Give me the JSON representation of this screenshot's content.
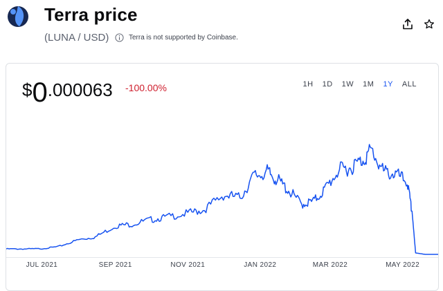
{
  "header": {
    "title": "Terra price",
    "pair": "(LUNA / USD)",
    "notice": "Terra is not supported by Coinbase."
  },
  "icons": {
    "logo": "terra-logo-icon",
    "info": "info-icon",
    "share": "share-icon",
    "star": "star-icon"
  },
  "colors": {
    "accent": "#1652f0",
    "negative": "#cf202f",
    "line": "#1652f0",
    "logo_dark": "#172852",
    "logo_light": "#5493f7"
  },
  "price": {
    "currency": "$",
    "integer": "0",
    "decimals": ".000063",
    "change": "-100.00%"
  },
  "ranges": [
    {
      "label": "1H",
      "active": false
    },
    {
      "label": "1D",
      "active": false
    },
    {
      "label": "1W",
      "active": false
    },
    {
      "label": "1M",
      "active": false
    },
    {
      "label": "1Y",
      "active": true
    },
    {
      "label": "ALL",
      "active": false
    }
  ],
  "chart_data": {
    "type": "line",
    "x_tick_labels": [
      "JUL 2021",
      "SEP 2021",
      "NOV 2021",
      "JAN 2022",
      "MAR 2022",
      "MAY 2022"
    ],
    "x": [
      "2021-06-01",
      "2021-06-15",
      "2021-07-01",
      "2021-07-15",
      "2021-08-01",
      "2021-08-15",
      "2021-09-01",
      "2021-09-15",
      "2021-10-01",
      "2021-10-15",
      "2021-11-01",
      "2021-11-15",
      "2021-12-01",
      "2021-12-15",
      "2021-12-27",
      "2022-01-07",
      "2022-01-15",
      "2022-01-25",
      "2022-02-05",
      "2022-02-15",
      "2022-02-25",
      "2022-03-08",
      "2022-03-18",
      "2022-03-28",
      "2022-04-05",
      "2022-04-15",
      "2022-04-25",
      "2022-05-05",
      "2022-05-09",
      "2022-05-12",
      "2022-05-20",
      "2022-05-31"
    ],
    "values": [
      6.0,
      5.9,
      6.2,
      8.5,
      16.0,
      19.0,
      31.0,
      33.0,
      38.0,
      41.0,
      45.0,
      49.0,
      65.0,
      62.0,
      86.0,
      90.0,
      82.0,
      70.0,
      55.0,
      58.0,
      72.0,
      92.0,
      95.0,
      103.0,
      114.0,
      90.0,
      88.0,
      79.0,
      45.0,
      1.5,
      0.0001,
      6.3e-05
    ],
    "xlabel": "",
    "ylabel": "",
    "grid": false
  }
}
